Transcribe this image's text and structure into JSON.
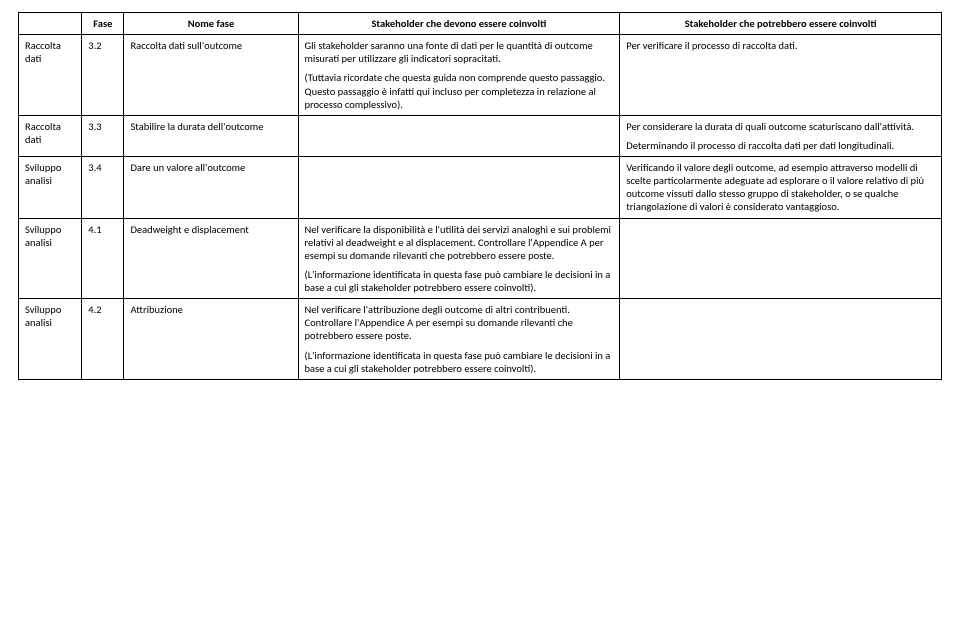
{
  "headers": {
    "h1": "",
    "h2": "Fase",
    "h3": "Nome fase",
    "h4": "Stakeholder che devono essere coinvolti",
    "h5": "Stakeholder che potrebbero essere coinvolti"
  },
  "rows": {
    "r0": {
      "c1": "Raccolta dati",
      "c2": "3.2",
      "c3": "Raccolta dati sull'outcome",
      "c4a": "Gli stakeholder saranno una fonte di dati per le quantità di outcome misurati per utilizzare gli indicatori sopracitati.",
      "c4b": "(Tuttavia ricordate che questa guida non comprende questo passaggio. Questo passaggio è infatti qui incluso per completezza in relazione al processo complessivo).",
      "c5": "Per verificare il processo di raccolta dati."
    },
    "r1": {
      "c1": "Raccolta dati",
      "c2": "3.3",
      "c3": "Stabilire la durata dell'outcome",
      "c4": "",
      "c5a": "Per considerare la durata di quali outcome scaturiscano dall'attività.",
      "c5b": "Determinando il processo di raccolta dati per dati longitudinali."
    },
    "r2": {
      "c1": "Sviluppo analisi",
      "c2": "3.4",
      "c3": "Dare un valore all'outcome",
      "c4": "",
      "c5": "Verificando il valore degli outcome, ad esempio attraverso modelli di scelte particolarmente adeguate ad esplorare o il valore relativo di più outcome vissuti dallo stesso gruppo di stakeholder, o se qualche triangolazione di valori è considerato vantaggioso."
    },
    "r3": {
      "c1": "Sviluppo analisi",
      "c2": "4.1",
      "c3": "Deadweight e displacement",
      "c4a": "Nel verificare la disponibilità e l'utilità dei servizi analoghi e sui problemi relativi al deadweight e al displacement. Controllare l'Appendice A per esempi su domande rilevanti che potrebbero essere poste.",
      "c4b": "(L'informazione identificata in questa fase può cambiare le decisioni in a base a cui gli stakeholder potrebbero essere coinvolti).",
      "c5": ""
    },
    "r4": {
      "c1": "Sviluppo analisi",
      "c2": "4.2",
      "c3": "Attribuzione",
      "c4a": "Nel verificare l'attribuzione degli outcome di altri contribuenti. Controllare l'Appendice A per esempi su domande rilevanti che potrebbero essere poste.",
      "c4b": "(L'informazione identificata in questa fase può cambiare le decisioni in a base a cui gli stakeholder potrebbero essere coinvolti).",
      "c5": ""
    }
  }
}
